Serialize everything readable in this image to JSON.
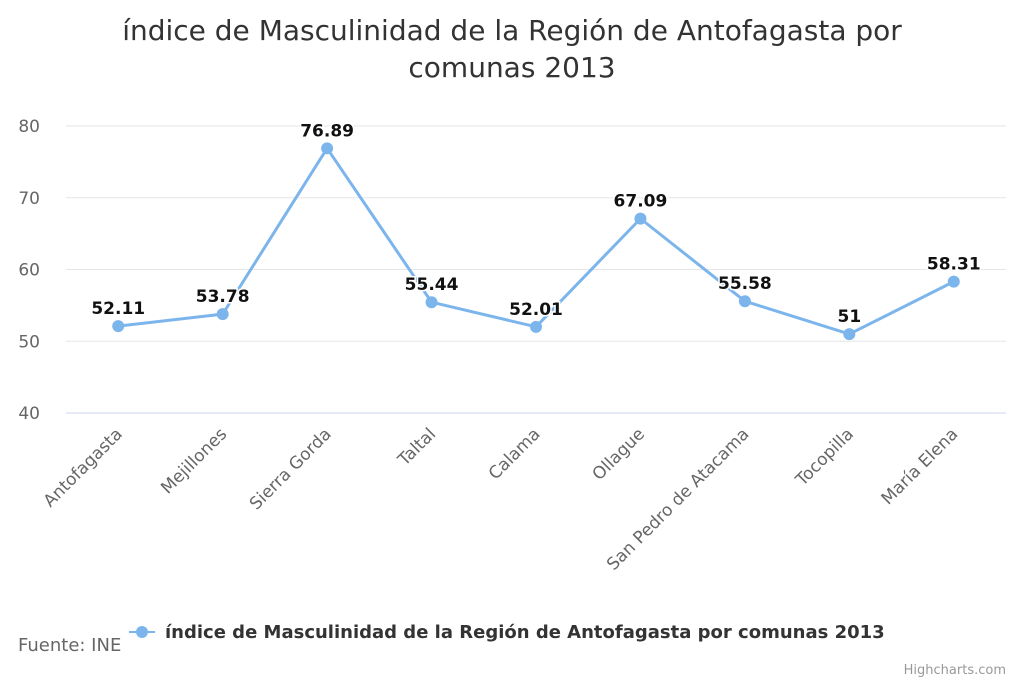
{
  "chart_data": {
    "type": "line",
    "title_lines": [
      "índice de Masculinidad de la Región de Antofagasta por",
      "comunas 2013"
    ],
    "categories": [
      "Antofagasta",
      "Mejillones",
      "Sierra Gorda",
      "Taltal",
      "Calama",
      "Ollague",
      "San Pedro de Atacama",
      "Tocopilla",
      "María Elena"
    ],
    "series": [
      {
        "name": "índice de Masculinidad de la Región de Antofagasta por comunas 2013",
        "values": [
          52.11,
          53.78,
          76.89,
          55.44,
          52.01,
          67.09,
          55.58,
          51,
          58.31
        ],
        "data_labels": [
          "52.11",
          "53.78",
          "76.89",
          "55.44",
          "52.01",
          "67.09",
          "55.58",
          "51",
          "58.31"
        ],
        "color": "#7cb5ec"
      }
    ],
    "ylim": [
      40,
      80
    ],
    "yticks": [
      40,
      50,
      60,
      70,
      80
    ],
    "grid": true,
    "legend_position": "bottom-center"
  },
  "source_text": "Fuente: INE",
  "credits_text": "Highcharts.com"
}
